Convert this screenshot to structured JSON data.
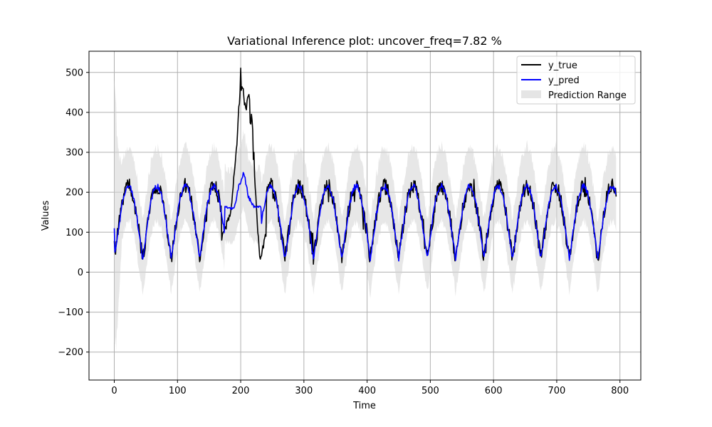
{
  "chart_data": {
    "type": "line",
    "title": "Variational Inference plot: uncover_freq=7.82 %",
    "xlabel": "Time",
    "ylabel": "Values",
    "xlim": [
      -40,
      833
    ],
    "ylim": [
      -270,
      553
    ],
    "xticks": [
      0,
      100,
      200,
      300,
      400,
      500,
      600,
      700,
      800
    ],
    "yticks": [
      -200,
      -100,
      0,
      100,
      200,
      300,
      400,
      500
    ],
    "grid": true,
    "legend_position": "top-right",
    "n_points": 795,
    "series": [
      {
        "name": "y_true",
        "color": "#000000",
        "description": "observed values, periodic ~45 step cycle between ~30 and ~240, with a spike to ~490 around t=200"
      },
      {
        "name": "y_pred",
        "color": "#0000ff",
        "description": "predicted mean, tracks the periodic cycle between ~35 and ~230"
      },
      {
        "name": "Prediction Range",
        "color": "#d3d3d3",
        "type": "band",
        "description": "prediction interval, roughly pred-80 to pred+95, wide (-270 to 520) during the first ~10 steps"
      }
    ],
    "cycle": {
      "period": 45.0,
      "phase": 0,
      "low": 35,
      "high": 215
    },
    "features": {
      "start_true": 78,
      "start_pred": 110,
      "anomaly_true": [
        [
          170,
          80
        ],
        [
          185,
          160
        ],
        [
          193,
          300
        ],
        [
          200,
          488
        ],
        [
          206,
          440
        ],
        [
          212,
          430
        ],
        [
          218,
          370
        ],
        [
          222,
          250
        ],
        [
          226,
          130
        ],
        [
          230,
          30
        ],
        [
          240,
          95
        ]
      ],
      "anomaly_pred": [
        [
          175,
          160
        ],
        [
          190,
          160
        ],
        [
          196,
          210
        ],
        [
          205,
          250
        ],
        [
          212,
          190
        ],
        [
          220,
          165
        ],
        [
          232,
          160
        ]
      ],
      "band_initial": {
        "upper": [
          0,
          520
        ],
        "lower": [
          0,
          -270
        ],
        "settle_at": 12
      }
    }
  },
  "legend": {
    "items": [
      {
        "label": "y_true",
        "color": "#000000"
      },
      {
        "label": "y_pred",
        "color": "#0000ff"
      },
      {
        "label": "Prediction Range",
        "color": "#d3d3d3"
      }
    ]
  }
}
